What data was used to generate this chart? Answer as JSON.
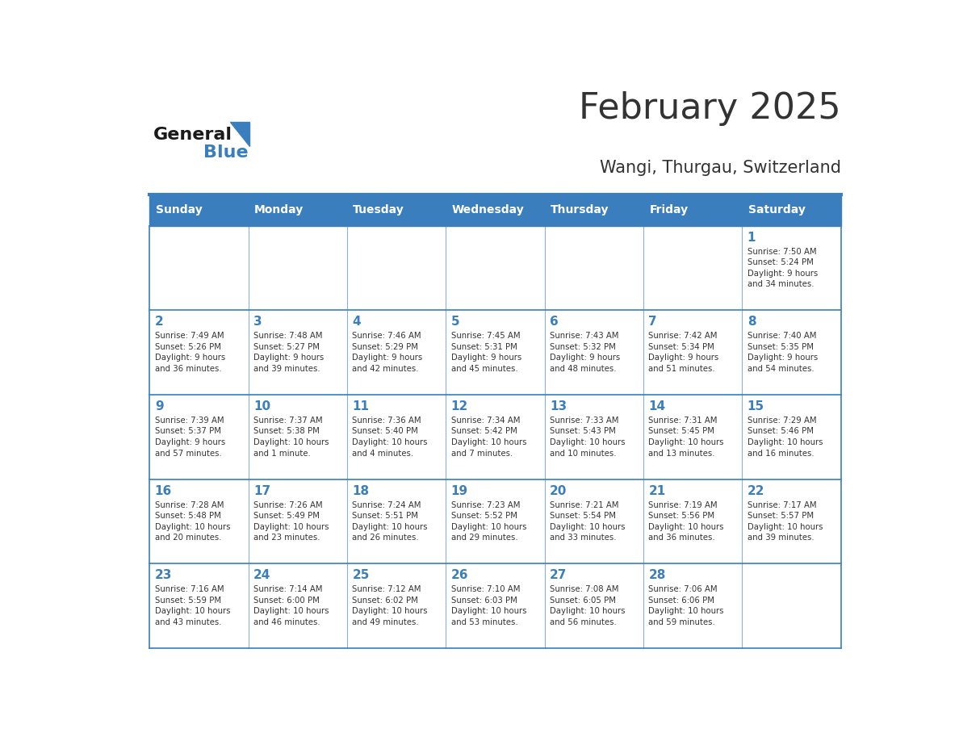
{
  "title": "February 2025",
  "subtitle": "Wangi, Thurgau, Switzerland",
  "days_of_week": [
    "Sunday",
    "Monday",
    "Tuesday",
    "Wednesday",
    "Thursday",
    "Friday",
    "Saturday"
  ],
  "header_bg": "#3A7EBD",
  "header_text": "#FFFFFF",
  "cell_bg_light": "#FFFFFF",
  "day_number_color": "#3A7EBD",
  "text_color": "#333333",
  "border_color": "#3A7EBD",
  "logo_general_color": "#1A1A1A",
  "logo_blue_color": "#3A7EBD",
  "weeks": [
    [
      {
        "day": null,
        "info": null
      },
      {
        "day": null,
        "info": null
      },
      {
        "day": null,
        "info": null
      },
      {
        "day": null,
        "info": null
      },
      {
        "day": null,
        "info": null
      },
      {
        "day": null,
        "info": null
      },
      {
        "day": 1,
        "info": "Sunrise: 7:50 AM\nSunset: 5:24 PM\nDaylight: 9 hours\nand 34 minutes."
      }
    ],
    [
      {
        "day": 2,
        "info": "Sunrise: 7:49 AM\nSunset: 5:26 PM\nDaylight: 9 hours\nand 36 minutes."
      },
      {
        "day": 3,
        "info": "Sunrise: 7:48 AM\nSunset: 5:27 PM\nDaylight: 9 hours\nand 39 minutes."
      },
      {
        "day": 4,
        "info": "Sunrise: 7:46 AM\nSunset: 5:29 PM\nDaylight: 9 hours\nand 42 minutes."
      },
      {
        "day": 5,
        "info": "Sunrise: 7:45 AM\nSunset: 5:31 PM\nDaylight: 9 hours\nand 45 minutes."
      },
      {
        "day": 6,
        "info": "Sunrise: 7:43 AM\nSunset: 5:32 PM\nDaylight: 9 hours\nand 48 minutes."
      },
      {
        "day": 7,
        "info": "Sunrise: 7:42 AM\nSunset: 5:34 PM\nDaylight: 9 hours\nand 51 minutes."
      },
      {
        "day": 8,
        "info": "Sunrise: 7:40 AM\nSunset: 5:35 PM\nDaylight: 9 hours\nand 54 minutes."
      }
    ],
    [
      {
        "day": 9,
        "info": "Sunrise: 7:39 AM\nSunset: 5:37 PM\nDaylight: 9 hours\nand 57 minutes."
      },
      {
        "day": 10,
        "info": "Sunrise: 7:37 AM\nSunset: 5:38 PM\nDaylight: 10 hours\nand 1 minute."
      },
      {
        "day": 11,
        "info": "Sunrise: 7:36 AM\nSunset: 5:40 PM\nDaylight: 10 hours\nand 4 minutes."
      },
      {
        "day": 12,
        "info": "Sunrise: 7:34 AM\nSunset: 5:42 PM\nDaylight: 10 hours\nand 7 minutes."
      },
      {
        "day": 13,
        "info": "Sunrise: 7:33 AM\nSunset: 5:43 PM\nDaylight: 10 hours\nand 10 minutes."
      },
      {
        "day": 14,
        "info": "Sunrise: 7:31 AM\nSunset: 5:45 PM\nDaylight: 10 hours\nand 13 minutes."
      },
      {
        "day": 15,
        "info": "Sunrise: 7:29 AM\nSunset: 5:46 PM\nDaylight: 10 hours\nand 16 minutes."
      }
    ],
    [
      {
        "day": 16,
        "info": "Sunrise: 7:28 AM\nSunset: 5:48 PM\nDaylight: 10 hours\nand 20 minutes."
      },
      {
        "day": 17,
        "info": "Sunrise: 7:26 AM\nSunset: 5:49 PM\nDaylight: 10 hours\nand 23 minutes."
      },
      {
        "day": 18,
        "info": "Sunrise: 7:24 AM\nSunset: 5:51 PM\nDaylight: 10 hours\nand 26 minutes."
      },
      {
        "day": 19,
        "info": "Sunrise: 7:23 AM\nSunset: 5:52 PM\nDaylight: 10 hours\nand 29 minutes."
      },
      {
        "day": 20,
        "info": "Sunrise: 7:21 AM\nSunset: 5:54 PM\nDaylight: 10 hours\nand 33 minutes."
      },
      {
        "day": 21,
        "info": "Sunrise: 7:19 AM\nSunset: 5:56 PM\nDaylight: 10 hours\nand 36 minutes."
      },
      {
        "day": 22,
        "info": "Sunrise: 7:17 AM\nSunset: 5:57 PM\nDaylight: 10 hours\nand 39 minutes."
      }
    ],
    [
      {
        "day": 23,
        "info": "Sunrise: 7:16 AM\nSunset: 5:59 PM\nDaylight: 10 hours\nand 43 minutes."
      },
      {
        "day": 24,
        "info": "Sunrise: 7:14 AM\nSunset: 6:00 PM\nDaylight: 10 hours\nand 46 minutes."
      },
      {
        "day": 25,
        "info": "Sunrise: 7:12 AM\nSunset: 6:02 PM\nDaylight: 10 hours\nand 49 minutes."
      },
      {
        "day": 26,
        "info": "Sunrise: 7:10 AM\nSunset: 6:03 PM\nDaylight: 10 hours\nand 53 minutes."
      },
      {
        "day": 27,
        "info": "Sunrise: 7:08 AM\nSunset: 6:05 PM\nDaylight: 10 hours\nand 56 minutes."
      },
      {
        "day": 28,
        "info": "Sunrise: 7:06 AM\nSunset: 6:06 PM\nDaylight: 10 hours\nand 59 minutes."
      },
      {
        "day": null,
        "info": null
      }
    ]
  ]
}
